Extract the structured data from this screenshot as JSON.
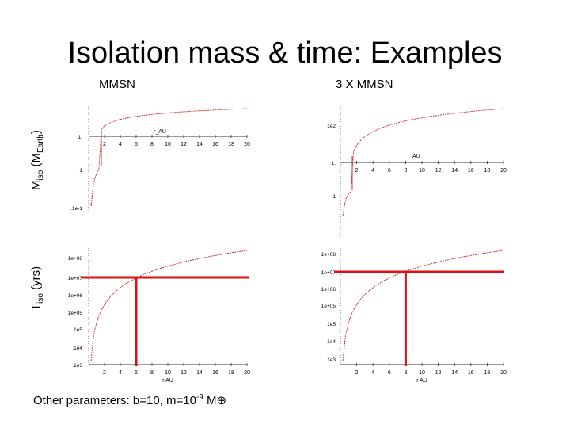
{
  "slide": {
    "title": "Isolation mass & time: Examples",
    "col_left": "MMSN",
    "col_right": "3 X MMSN",
    "ylabel_mass_base": "M",
    "ylabel_mass_sub": "iso",
    "ylabel_mass_unit_open": " (M",
    "ylabel_mass_unit_sub": "Earth",
    "ylabel_mass_unit_close": ")",
    "ylabel_time_base": "T",
    "ylabel_time_sub": "iso",
    "ylabel_time_unit": " (yrs)",
    "footer_text": "Other parameters: b=10, m=10",
    "footer_exp": "-9",
    "footer_unit": " M⊕"
  },
  "colors": {
    "curve": "#cc2222",
    "marker": "#dd1111",
    "axis": "#333333",
    "text": "#000000"
  },
  "chart_data": [
    {
      "id": "mass-mmsn",
      "type": "line",
      "x_tick_labels": [
        "2",
        "4",
        "6",
        "8",
        "10",
        "12",
        "14",
        "16",
        "18",
        "20"
      ],
      "x_label": "r_AU",
      "y_tick_labels": [
        "1.",
        "1",
        "",
        ".1e-1"
      ],
      "xlim": [
        0,
        20
      ],
      "series": [
        {
          "values": "log-like curve rising from ~0.1 to ~10 across r = 0.2–20 AU"
        }
      ]
    },
    {
      "id": "mass-3mmsn",
      "type": "line",
      "x_tick_labels": [
        "2",
        "4",
        "6",
        "8",
        "10",
        "12",
        "14",
        "16",
        "18",
        "20"
      ],
      "x_label": "r_AU",
      "y_tick_labels": [
        "1e2",
        "1.",
        ".1"
      ],
      "xlim": [
        0,
        20
      ]
    },
    {
      "id": "time-mmsn",
      "type": "line",
      "x_tick_labels": [
        "2",
        "4",
        "6",
        "8",
        "10",
        "12",
        "14",
        "16",
        "18",
        "20"
      ],
      "x_label": "r AU",
      "y_tick_labels": [
        "1e+08",
        "1e+07",
        "1e+06",
        "1e+05",
        ".1e5",
        ".1e4",
        ".1e3"
      ],
      "xlim": [
        0,
        20
      ],
      "marker": {
        "x": 6,
        "y_label": "1e+07"
      }
    },
    {
      "id": "time-3mmsn",
      "type": "line",
      "x_tick_labels": [
        "2",
        "4",
        "6",
        "8",
        "10",
        "12",
        "14",
        "16",
        "18",
        "20"
      ],
      "x_label": "r AU",
      "y_tick_labels": [
        "1e+08",
        "1e+07",
        "1e+06",
        "1e+05",
        "1e5",
        "1e4",
        ".1e3"
      ],
      "xlim": [
        0,
        20
      ],
      "marker": {
        "x": 8,
        "y_label": "1e+07"
      }
    }
  ]
}
